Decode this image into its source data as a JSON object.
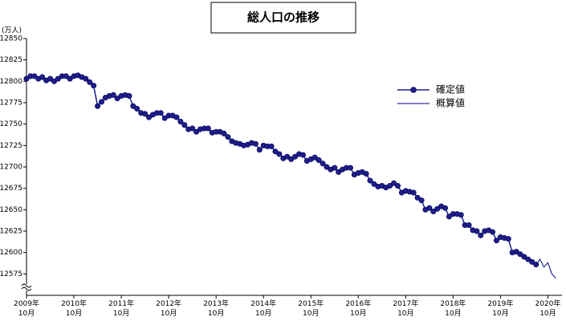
{
  "chart_data": {
    "type": "line",
    "title": "総人口の推移",
    "y_label": "(万人)",
    "categories": [
      "2009年\n10月",
      null,
      null,
      null,
      null,
      null,
      null,
      null,
      null,
      null,
      null,
      null,
      "2010年\n10月",
      null,
      null,
      null,
      null,
      null,
      null,
      null,
      null,
      null,
      null,
      null,
      "2011年\n10月",
      null,
      null,
      null,
      null,
      null,
      null,
      null,
      null,
      null,
      null,
      null,
      "2012年\n10月",
      null,
      null,
      null,
      null,
      null,
      null,
      null,
      null,
      null,
      null,
      null,
      "2013年\n10月",
      null,
      null,
      null,
      null,
      null,
      null,
      null,
      null,
      null,
      null,
      null,
      "2014年\n10月",
      null,
      null,
      null,
      null,
      null,
      null,
      null,
      null,
      null,
      null,
      null,
      "2015年\n10月",
      null,
      null,
      null,
      null,
      null,
      null,
      null,
      null,
      null,
      null,
      null,
      "2016年\n10月",
      null,
      null,
      null,
      null,
      null,
      null,
      null,
      null,
      null,
      null,
      null,
      "2017年\n10月",
      null,
      null,
      null,
      null,
      null,
      null,
      null,
      null,
      null,
      null,
      null,
      "2018年\n10月",
      null,
      null,
      null,
      null,
      null,
      null,
      null,
      null,
      null,
      null,
      null,
      "2019年\n10月",
      null,
      null,
      null,
      null,
      null,
      null,
      null,
      null,
      null,
      null,
      null,
      "2020年\n10月",
      null,
      null
    ],
    "series": [
      {
        "name": "確定値",
        "color": "#1e1e8c",
        "markers": true,
        "values": [
          12803,
          12806,
          12806,
          12803,
          12805,
          12801,
          12803,
          12800,
          12803,
          12806,
          12806,
          12803,
          12806,
          12807,
          12805,
          12803,
          12799,
          12795,
          12771,
          12776,
          12781,
          12783,
          12784,
          12780,
          12783,
          12784,
          12783,
          12771,
          12768,
          12763,
          12762,
          12758,
          12761,
          12763,
          12763,
          12757,
          12760,
          12760,
          12758,
          12753,
          12749,
          12744,
          12745,
          12741,
          12744,
          12745,
          12745,
          12740,
          12741,
          12741,
          12739,
          12735,
          12730,
          12728,
          12727,
          12725,
          12726,
          12728,
          12727,
          12720,
          12725,
          12724,
          12724,
          12718,
          12715,
          12710,
          12712,
          12709,
          12712,
          12715,
          12714,
          12707,
          12709,
          12711,
          12708,
          12704,
          12700,
          12697,
          12699,
          12694,
          12697,
          12699,
          12699,
          12691,
          12693,
          12694,
          12692,
          12684,
          12680,
          12677,
          12678,
          12676,
          12678,
          12681,
          12678,
          12670,
          12672,
          12671,
          12670,
          12664,
          12661,
          12650,
          12652,
          12648,
          12651,
          12654,
          12652,
          12642,
          12645,
          12645,
          12644,
          12632,
          12632,
          12626,
          12625,
          12620,
          12625,
          12626,
          12624,
          12614,
          12618,
          12617,
          12616,
          12600,
          12601,
          12598,
          12595,
          12592,
          12589,
          12586,
          null,
          null,
          null,
          null,
          null
        ]
      },
      {
        "name": "概算値",
        "color": "#000080",
        "markers": false,
        "values": [
          null,
          null,
          null,
          null,
          null,
          null,
          null,
          null,
          null,
          null,
          null,
          null,
          null,
          null,
          null,
          null,
          null,
          null,
          null,
          null,
          null,
          null,
          null,
          null,
          null,
          null,
          null,
          null,
          null,
          null,
          null,
          null,
          null,
          null,
          null,
          null,
          null,
          null,
          null,
          null,
          null,
          null,
          null,
          null,
          null,
          null,
          null,
          null,
          null,
          null,
          null,
          null,
          null,
          null,
          null,
          null,
          null,
          null,
          null,
          null,
          null,
          null,
          null,
          null,
          null,
          null,
          null,
          null,
          null,
          null,
          null,
          null,
          null,
          null,
          null,
          null,
          null,
          null,
          null,
          null,
          null,
          null,
          null,
          null,
          null,
          null,
          null,
          null,
          null,
          null,
          null,
          null,
          null,
          null,
          null,
          null,
          null,
          null,
          null,
          null,
          null,
          null,
          null,
          null,
          null,
          null,
          null,
          null,
          null,
          null,
          null,
          null,
          null,
          null,
          null,
          null,
          null,
          null,
          null,
          null,
          null,
          null,
          null,
          null,
          null,
          null,
          null,
          null,
          null,
          12586,
          12592,
          12583,
          12588,
          12575,
          12570
        ]
      }
    ],
    "ylim": [
      12550,
      12850
    ],
    "yticks": [
      12575,
      12600,
      12625,
      12650,
      12675,
      12700,
      12725,
      12750,
      12775,
      12800,
      12825,
      12850
    ],
    "legend": "upper right"
  }
}
